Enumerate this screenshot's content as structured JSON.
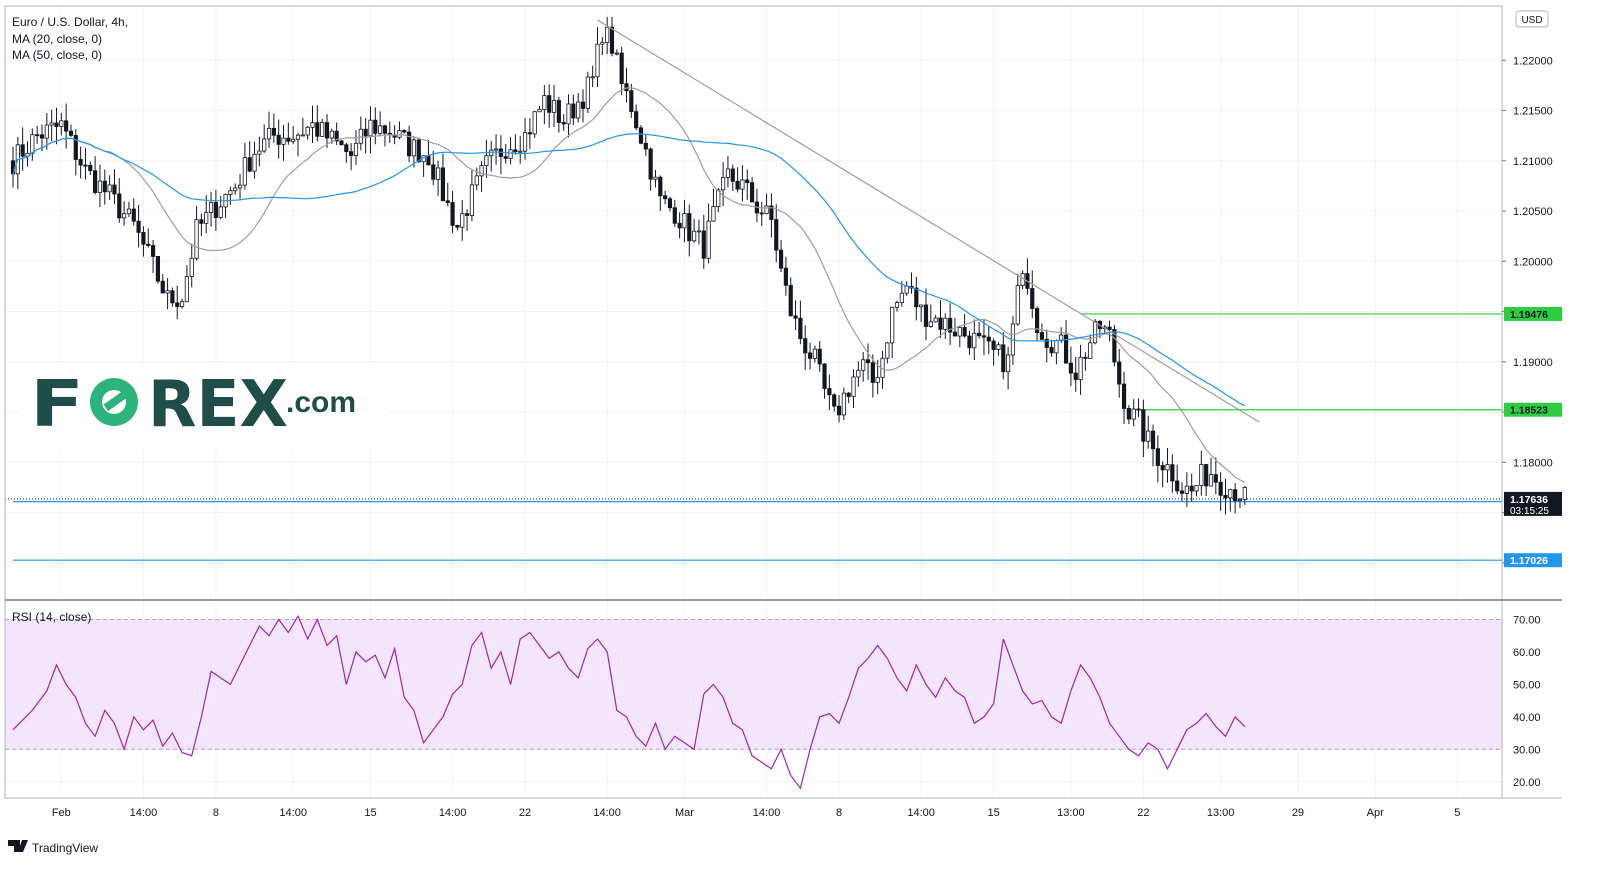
{
  "header": {
    "title": "Euro / U.S. Dollar, 4h,",
    "indicators": [
      "MA (20, close, 0)",
      "MA (50, close, 0)"
    ]
  },
  "currency": "USD",
  "logo": {
    "text": "FOREX",
    "suffix": ".com",
    "color": "#1f4e4a",
    "accent": "#2db37c"
  },
  "rsi_label": "RSI (14, close)",
  "footer": {
    "brand": "TradingView"
  },
  "colors": {
    "candle": "#131722",
    "ma20": "#9e9e9e",
    "ma50": "#2196f3",
    "trendline": "#9e9e9e",
    "level_green": "#2ecc40",
    "level_blue": "#2196f3",
    "rsi_line": "#9c27b0",
    "rsi_band": "#f3e5fb",
    "grid": "#eef0f3"
  },
  "chart_data": [
    {
      "type": "candlestick",
      "title": "Euro / U.S. Dollar, 4h,",
      "currency": "USD",
      "y_ticks": [
        1.17,
        1.175,
        1.18,
        1.185,
        1.19,
        1.195,
        1.2,
        1.205,
        1.21,
        1.215,
        1.22
      ],
      "y_tick_labels": [
        "",
        "",
        "1.18000",
        "",
        "1.19000",
        "",
        "1.20000",
        "1.20500",
        "1.21000",
        "1.21500",
        "1.22000"
      ],
      "ylim": [
        1.1665,
        1.2254
      ],
      "x_ticks": [
        "Feb",
        "14:00",
        "8",
        "14:00",
        "15",
        "14:00",
        "22",
        "14:00",
        "Mar",
        "14:00",
        "8",
        "14:00",
        "15",
        "13:00",
        "22",
        "13:00",
        "29",
        "Apr",
        "5"
      ],
      "x_tick_index": [
        10,
        27,
        42,
        58,
        74,
        91,
        106,
        123,
        139,
        156,
        171,
        188,
        203,
        219,
        234,
        250,
        266,
        282,
        299
      ],
      "x_slots": 307,
      "price_path": [
        [
          0,
          1.21
        ],
        [
          5,
          1.2125
        ],
        [
          10,
          1.2135
        ],
        [
          15,
          1.209
        ],
        [
          20,
          1.2065
        ],
        [
          25,
          1.2035
        ],
        [
          28,
          1.2005
        ],
        [
          32,
          1.1962
        ],
        [
          35,
          1.1965
        ],
        [
          38,
          1.203
        ],
        [
          42,
          1.2055
        ],
        [
          46,
          1.2075
        ],
        [
          50,
          1.211
        ],
        [
          54,
          1.2125
        ],
        [
          58,
          1.2125
        ],
        [
          62,
          1.2135
        ],
        [
          66,
          1.212
        ],
        [
          70,
          1.2105
        ],
        [
          74,
          1.2135
        ],
        [
          78,
          1.213
        ],
        [
          82,
          1.2115
        ],
        [
          86,
          1.2105
        ],
        [
          90,
          1.2055
        ],
        [
          92,
          1.2035
        ],
        [
          95,
          1.2065
        ],
        [
          98,
          1.2095
        ],
        [
          102,
          1.2115
        ],
        [
          106,
          1.2125
        ],
        [
          110,
          1.216
        ],
        [
          114,
          1.214
        ],
        [
          118,
          1.2165
        ],
        [
          120,
          1.218
        ],
        [
          122,
          1.223
        ],
        [
          124,
          1.2215
        ],
        [
          126,
          1.2175
        ],
        [
          128,
          1.2155
        ],
        [
          131,
          1.211
        ],
        [
          134,
          1.206
        ],
        [
          137,
          1.205
        ],
        [
          140,
          1.203
        ],
        [
          143,
          1.2015
        ],
        [
          145,
          1.2045
        ],
        [
          148,
          1.2085
        ],
        [
          151,
          1.2075
        ],
        [
          154,
          1.2055
        ],
        [
          157,
          1.204
        ],
        [
          159,
          1.199
        ],
        [
          161,
          1.195
        ],
        [
          163,
          1.1925
        ],
        [
          166,
          1.19
        ],
        [
          168,
          1.187
        ],
        [
          170,
          1.1845
        ],
        [
          172,
          1.1865
        ],
        [
          174,
          1.1885
        ],
        [
          176,
          1.1895
        ],
        [
          178,
          1.188
        ],
        [
          180,
          1.1905
        ],
        [
          182,
          1.195
        ],
        [
          185,
          1.1975
        ],
        [
          188,
          1.195
        ],
        [
          190,
          1.1945
        ],
        [
          194,
          1.1935
        ],
        [
          198,
          1.1925
        ],
        [
          202,
          1.191
        ],
        [
          206,
          1.19
        ],
        [
          208,
          1.197
        ],
        [
          210,
          1.1985
        ],
        [
          212,
          1.194
        ],
        [
          214,
          1.1925
        ],
        [
          217,
          1.1915
        ],
        [
          220,
          1.189
        ],
        [
          223,
          1.192
        ],
        [
          225,
          1.1935
        ],
        [
          227,
          1.1925
        ],
        [
          229,
          1.188
        ],
        [
          231,
          1.185
        ],
        [
          233,
          1.184
        ],
        [
          235,
          1.182
        ],
        [
          238,
          1.18
        ],
        [
          240,
          1.179
        ],
        [
          242,
          1.1775
        ],
        [
          244,
          1.177
        ],
        [
          246,
          1.1785
        ],
        [
          248,
          1.179
        ],
        [
          250,
          1.178
        ],
        [
          252,
          1.1775
        ],
        [
          254,
          1.177
        ],
        [
          255,
          1.1764
        ]
      ],
      "trendline": {
        "start": {
          "index": 121,
          "price": 1.224
        },
        "end": {
          "index": 258,
          "price": 1.184
        }
      },
      "horizontal_levels": [
        {
          "price": 1.19476,
          "label": "1.19476",
          "color": "#2ecc40",
          "from_index": 221
        },
        {
          "price": 1.18523,
          "label": "1.18523",
          "color": "#2ecc40",
          "from_index": 232
        },
        {
          "price": 1.17609,
          "label": "1.17609",
          "color": "#2196f3",
          "from_index": 0
        },
        {
          "price": 1.17026,
          "label": "1.17026",
          "color": "#2196f3",
          "from_index": 0
        }
      ],
      "last_price": {
        "value": 1.17636,
        "label": "1.17636",
        "countdown": "03:15:25"
      },
      "series": [
        {
          "name": "MA (20, close, 0)",
          "color": "#9e9e9e"
        },
        {
          "name": "MA (50, close, 0)",
          "color": "#2196f3"
        }
      ]
    },
    {
      "type": "line",
      "title": "RSI (14, close)",
      "ylim": [
        15,
        76
      ],
      "y_ticks": [
        20,
        30,
        40,
        50,
        60,
        70
      ],
      "y_tick_labels": [
        "20.00",
        "30.00",
        "40.00",
        "50.00",
        "60.00",
        "70.00"
      ],
      "band": [
        30,
        70
      ],
      "values": [
        [
          0,
          36
        ],
        [
          4,
          42
        ],
        [
          7,
          48
        ],
        [
          9,
          56
        ],
        [
          11,
          50
        ],
        [
          13,
          46
        ],
        [
          15,
          38
        ],
        [
          17,
          34
        ],
        [
          19,
          42
        ],
        [
          21,
          38
        ],
        [
          23,
          30
        ],
        [
          25,
          40
        ],
        [
          27,
          36
        ],
        [
          29,
          39
        ],
        [
          31,
          31
        ],
        [
          33,
          35
        ],
        [
          35,
          29
        ],
        [
          37,
          28
        ],
        [
          39,
          40
        ],
        [
          41,
          54
        ],
        [
          43,
          52
        ],
        [
          45,
          50
        ],
        [
          47,
          56
        ],
        [
          49,
          62
        ],
        [
          51,
          68
        ],
        [
          53,
          65
        ],
        [
          55,
          70
        ],
        [
          57,
          66
        ],
        [
          59,
          71
        ],
        [
          61,
          64
        ],
        [
          63,
          70
        ],
        [
          65,
          62
        ],
        [
          67,
          65
        ],
        [
          69,
          50
        ],
        [
          71,
          60
        ],
        [
          73,
          57
        ],
        [
          75,
          59
        ],
        [
          77,
          52
        ],
        [
          79,
          61
        ],
        [
          81,
          46
        ],
        [
          83,
          42
        ],
        [
          85,
          32
        ],
        [
          87,
          36
        ],
        [
          89,
          40
        ],
        [
          91,
          47
        ],
        [
          93,
          50
        ],
        [
          95,
          62
        ],
        [
          97,
          66
        ],
        [
          99,
          55
        ],
        [
          101,
          60
        ],
        [
          103,
          50
        ],
        [
          105,
          64
        ],
        [
          107,
          66
        ],
        [
          109,
          62
        ],
        [
          111,
          58
        ],
        [
          113,
          60
        ],
        [
          115,
          55
        ],
        [
          117,
          52
        ],
        [
          119,
          61
        ],
        [
          121,
          64
        ],
        [
          123,
          60
        ],
        [
          125,
          42
        ],
        [
          127,
          40
        ],
        [
          129,
          34
        ],
        [
          131,
          31
        ],
        [
          133,
          38
        ],
        [
          135,
          30
        ],
        [
          137,
          34
        ],
        [
          139,
          32
        ],
        [
          141,
          30
        ],
        [
          143,
          47
        ],
        [
          145,
          50
        ],
        [
          147,
          46
        ],
        [
          149,
          38
        ],
        [
          151,
          36
        ],
        [
          153,
          28
        ],
        [
          155,
          26
        ],
        [
          157,
          24
        ],
        [
          159,
          30
        ],
        [
          161,
          22
        ],
        [
          163,
          18
        ],
        [
          165,
          30
        ],
        [
          167,
          40
        ],
        [
          169,
          41
        ],
        [
          171,
          38
        ],
        [
          173,
          46
        ],
        [
          175,
          55
        ],
        [
          177,
          58
        ],
        [
          179,
          62
        ],
        [
          181,
          58
        ],
        [
          183,
          52
        ],
        [
          185,
          48
        ],
        [
          187,
          56
        ],
        [
          189,
          50
        ],
        [
          191,
          46
        ],
        [
          193,
          52
        ],
        [
          195,
          48
        ],
        [
          197,
          46
        ],
        [
          199,
          38
        ],
        [
          201,
          40
        ],
        [
          203,
          44
        ],
        [
          205,
          64
        ],
        [
          207,
          56
        ],
        [
          209,
          48
        ],
        [
          211,
          44
        ],
        [
          213,
          45
        ],
        [
          215,
          40
        ],
        [
          217,
          38
        ],
        [
          219,
          48
        ],
        [
          221,
          56
        ],
        [
          223,
          52
        ],
        [
          225,
          46
        ],
        [
          227,
          38
        ],
        [
          229,
          34
        ],
        [
          231,
          30
        ],
        [
          233,
          28
        ],
        [
          235,
          32
        ],
        [
          237,
          30
        ],
        [
          239,
          24
        ],
        [
          241,
          30
        ],
        [
          243,
          36
        ],
        [
          245,
          38
        ],
        [
          247,
          41
        ],
        [
          249,
          37
        ],
        [
          251,
          34
        ],
        [
          253,
          40
        ],
        [
          255,
          37
        ]
      ]
    }
  ]
}
